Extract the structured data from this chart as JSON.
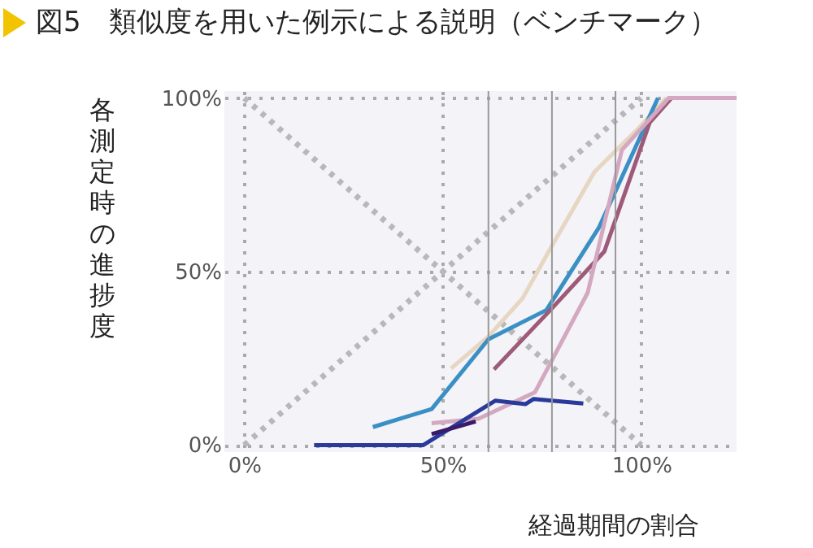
{
  "chart_data": {
    "type": "line",
    "title": "図5　類似度を用いた例示による説明（ベンチマーク）",
    "xlabel": "経過期間の割合",
    "ylabel": "各測定時の進捗度",
    "xlim": [
      -5,
      124
    ],
    "ylim": [
      -2,
      102
    ],
    "xticks": [
      {
        "value": 0,
        "label": "0%"
      },
      {
        "value": 50,
        "label": "50%"
      },
      {
        "value": 100,
        "label": "100%"
      }
    ],
    "yticks": [
      {
        "value": 0,
        "label": "0%"
      },
      {
        "value": 50,
        "label": "50%"
      },
      {
        "value": 100,
        "label": "100%"
      }
    ],
    "grid": true,
    "ref_lines": [
      {
        "axis": "x",
        "value": 61.5,
        "color": "#999999"
      },
      {
        "axis": "x",
        "value": 77.5,
        "color": "#999999"
      },
      {
        "axis": "x",
        "value": 93.5,
        "color": "#999999"
      }
    ],
    "series": [
      {
        "color": "#b8b8b8",
        "line_style": "dotted",
        "x": [
          0,
          100
        ],
        "values": [
          100,
          0
        ]
      },
      {
        "color": "#b8b8b8",
        "line_style": "dotted",
        "x": [
          0,
          100
        ],
        "values": [
          0,
          100
        ]
      },
      {
        "color": "#e6d6c2",
        "x": [
          52.1,
          61.5,
          70.1,
          77.1,
          88.2,
          99.3,
          106.3
        ],
        "values": [
          22.1,
          31.3,
          42.3,
          56.6,
          78.7,
          91.3,
          100
        ]
      },
      {
        "color": "#3a8fc4",
        "x": [
          32.4,
          47.2,
          61.5,
          76.1,
          89.3,
          104.2
        ],
        "values": [
          5.2,
          10.4,
          30.5,
          38.9,
          62.6,
          100
        ]
      },
      {
        "color": "#9e5a78",
        "x": [
          62.9,
          77.1,
          90.7,
          102.1,
          107.6
        ],
        "values": [
          21.8,
          38.9,
          55.8,
          92.9,
          100
        ]
      },
      {
        "color": "#d4a8c0",
        "x": [
          47.2,
          59,
          73.2,
          86.5,
          95.1,
          106.9,
          124
        ],
        "values": [
          6.3,
          7.6,
          15.2,
          43.9,
          85,
          100,
          100
        ]
      },
      {
        "color": "#2a3a9a",
        "x": [
          17.6,
          45.1,
          63.2,
          70.8,
          72.9,
          85.4
        ],
        "values": [
          0,
          0,
          12.8,
          11.8,
          13.3,
          12
        ]
      },
      {
        "color": "#3a1a6a",
        "x": [
          47.2,
          58.3
        ],
        "values": [
          3.2,
          6.8
        ]
      }
    ]
  }
}
